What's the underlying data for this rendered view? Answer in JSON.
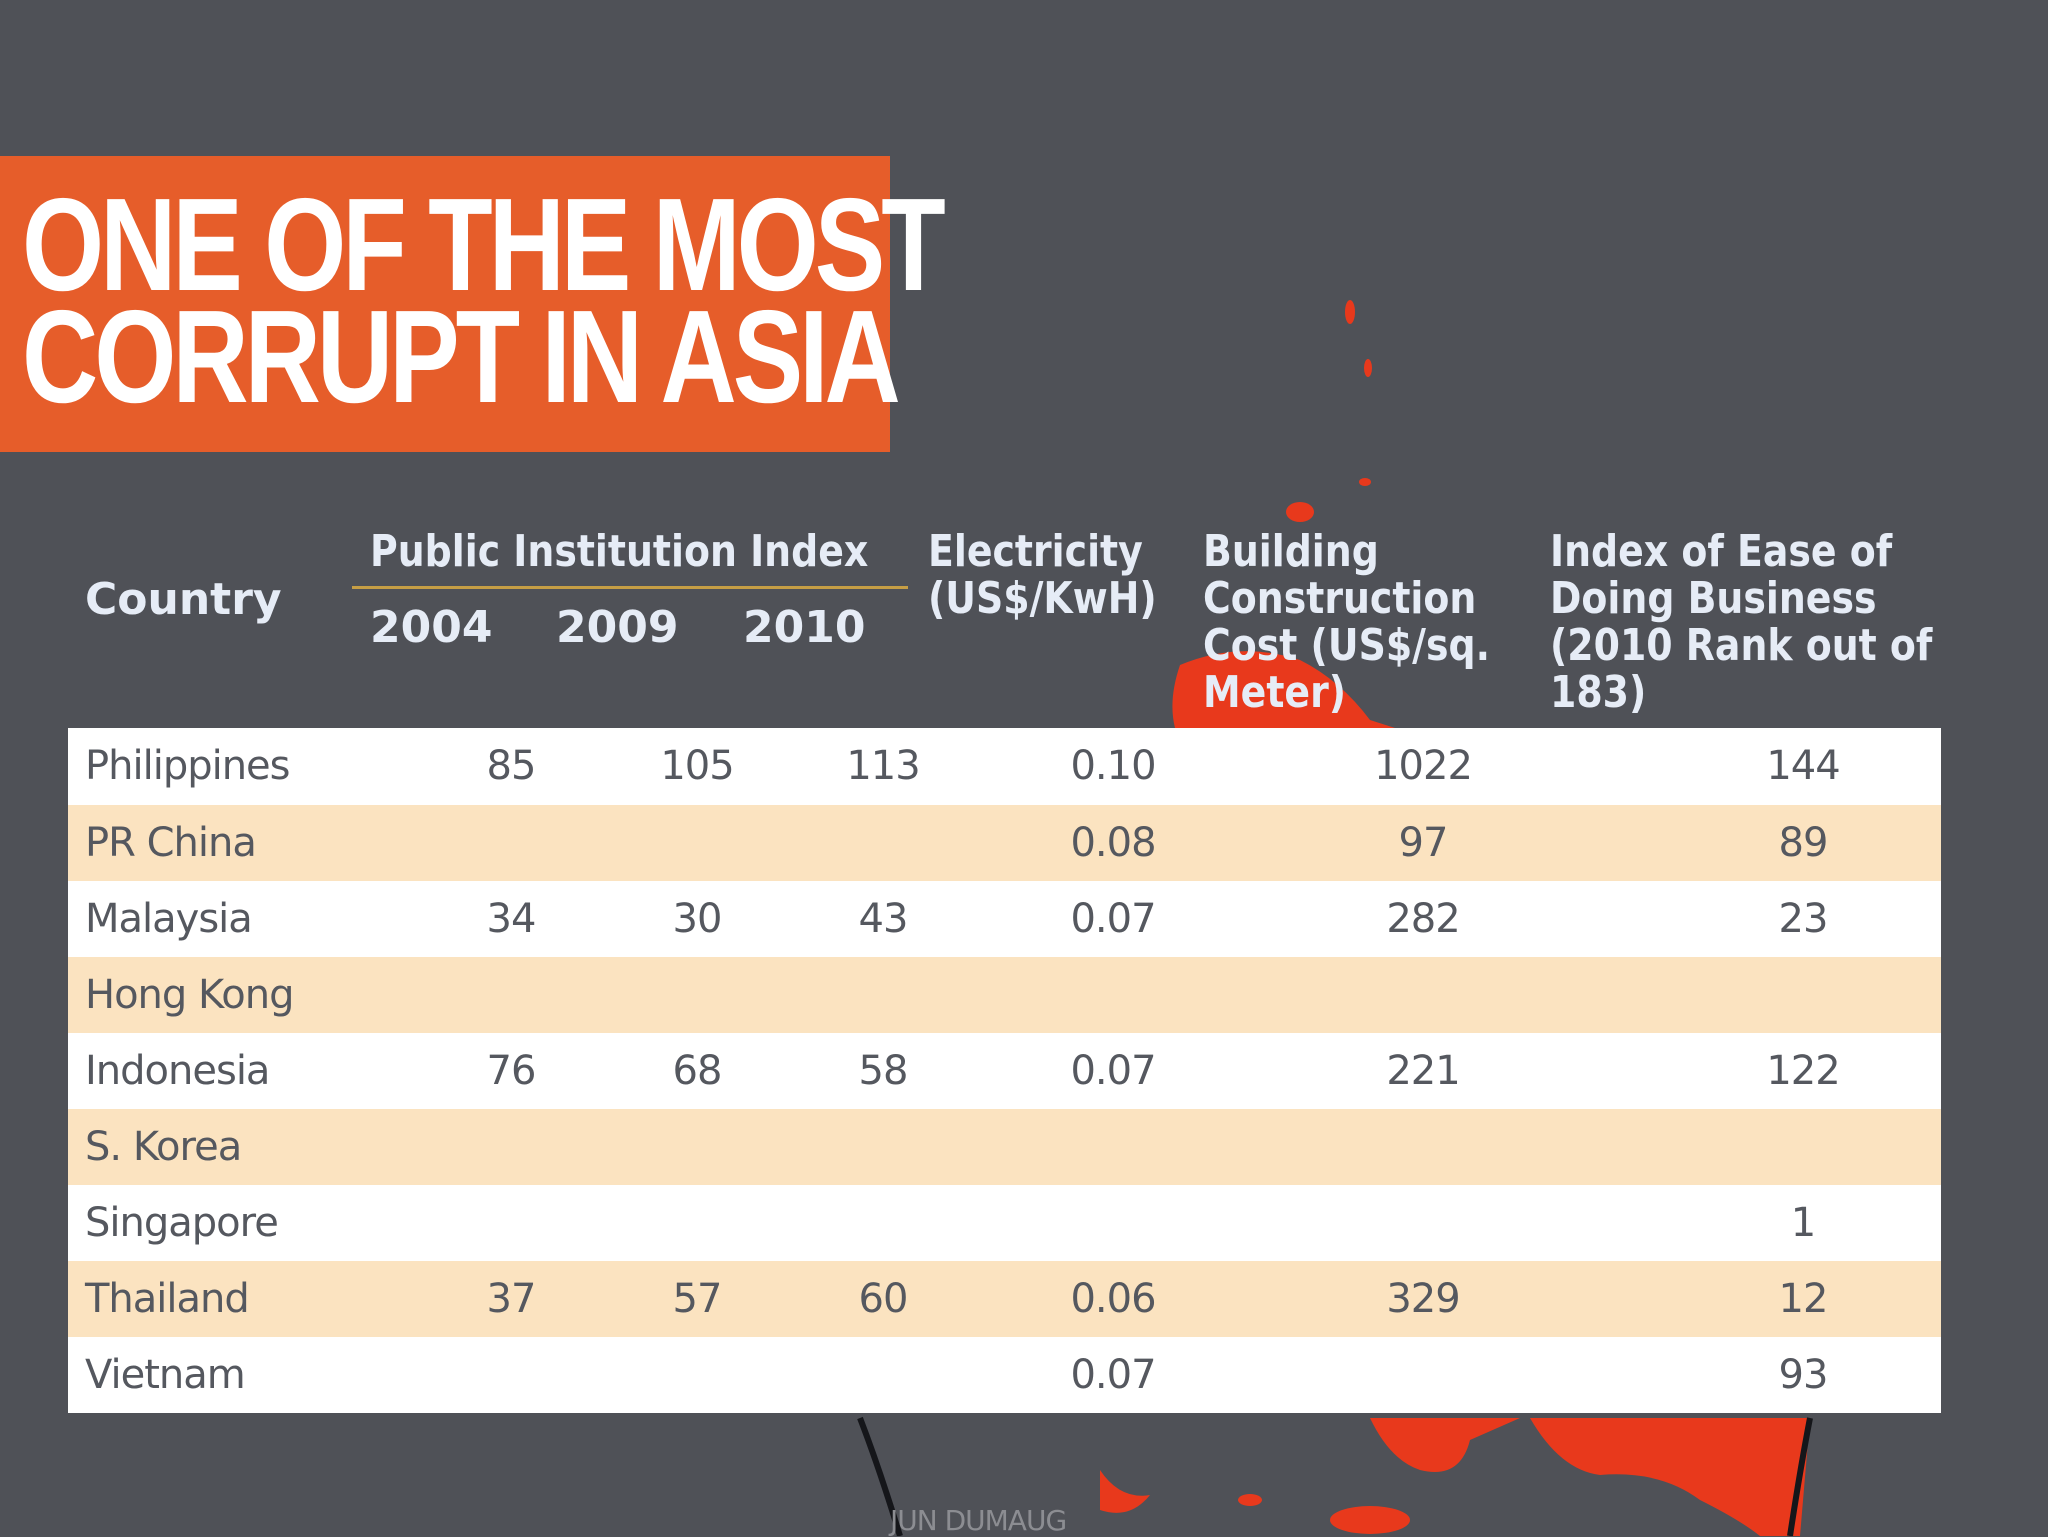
{
  "slide": {
    "title_line_1": "ONE OF THE MOST",
    "title_line_2": "CORRUPT IN ASIA",
    "credit": "JUN DUMAUG",
    "colors": {
      "background": "#4f5157",
      "banner": "#e65d2a",
      "splatter": "#e8391c",
      "header_text": "#e6ecf6",
      "header_rule": "#c69e45",
      "row_light": "#ffffff",
      "row_tinted": "#fbe3c0",
      "cell_text": "#55585f"
    }
  },
  "table": {
    "headers": {
      "country": "Country",
      "public_institution_index": "Public Institution Index",
      "years": [
        "2004",
        "2009",
        "2010"
      ],
      "electricity": [
        "Electricity",
        "(US$/KwH)"
      ],
      "building": [
        "Building",
        "Construction",
        "Cost (US$/sq.",
        "Meter)"
      ],
      "ease": [
        "Index of Ease of",
        "Doing Business",
        "(2010 Rank out of",
        "183)"
      ]
    },
    "rows": [
      {
        "country": "Philippines",
        "y2004": "85",
        "y2009": "105",
        "y2010": "113",
        "electricity": "0.10",
        "building": "1022",
        "ease": "144"
      },
      {
        "country": "PR China",
        "y2004": "",
        "y2009": "",
        "y2010": "",
        "electricity": "0.08",
        "building": "97",
        "ease": "89"
      },
      {
        "country": "Malaysia",
        "y2004": "34",
        "y2009": "30",
        "y2010": "43",
        "electricity": "0.07",
        "building": "282",
        "ease": "23"
      },
      {
        "country": "Hong Kong",
        "y2004": "",
        "y2009": "",
        "y2010": "",
        "electricity": "",
        "building": "",
        "ease": ""
      },
      {
        "country": "Indonesia",
        "y2004": "76",
        "y2009": "68",
        "y2010": "58",
        "electricity": "0.07",
        "building": "221",
        "ease": "122"
      },
      {
        "country": "S. Korea",
        "y2004": "",
        "y2009": "",
        "y2010": "",
        "electricity": "",
        "building": "",
        "ease": ""
      },
      {
        "country": "Singapore",
        "y2004": "",
        "y2009": "",
        "y2010": "",
        "electricity": "",
        "building": "",
        "ease": "1"
      },
      {
        "country": "Thailand",
        "y2004": "37",
        "y2009": "57",
        "y2010": "60",
        "electricity": "0.06",
        "building": "329",
        "ease": "12"
      },
      {
        "country": "Vietnam",
        "y2004": "",
        "y2009": "",
        "y2010": "",
        "electricity": "0.07",
        "building": "",
        "ease": "93"
      }
    ]
  }
}
